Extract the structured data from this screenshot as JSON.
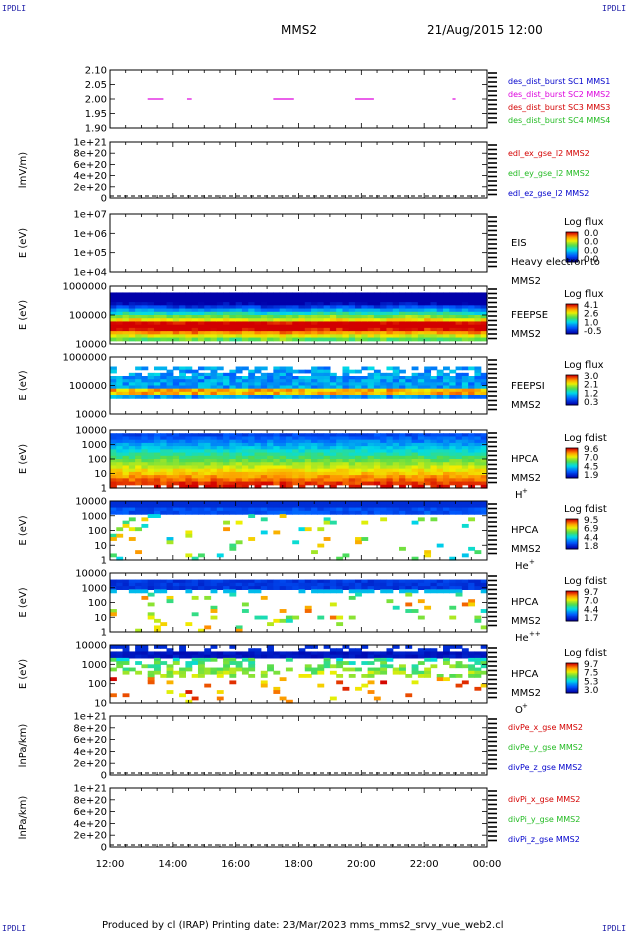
{
  "header": {
    "corner_left_top": "IPDLI",
    "corner_right_top": "IPDLI",
    "corner_left_bottom": "IPDLI",
    "corner_right_bottom": "IPDLI",
    "spacecraft": "MMS2",
    "date": "21/Aug/2015 12:00"
  },
  "footer": {
    "text": "Produced by cl (IRAP)   Printing date: 23/Mar/2023   mms_mms2_srvy_vue_web2.cl"
  },
  "colors": {
    "red": "#d40000",
    "green": "#22bb22",
    "blue": "#0000cc",
    "magenta": "#dd00dd"
  },
  "chart_data": [
    {
      "type": "line",
      "panel": "burst",
      "yticks": [
        "2.10",
        "2.05",
        "2.00",
        "1.95",
        "1.90"
      ],
      "ylim": [
        1.9,
        2.1
      ],
      "series": [
        {
          "name": "des_dist_burst SC1 MMS1",
          "color": "#0000cc"
        },
        {
          "name": "des_dist_burst SC2 MMS2",
          "color": "#dd00dd",
          "segments": [
            [
              13.2,
              13.7
            ],
            [
              14.45,
              14.6
            ],
            [
              17.2,
              17.85
            ],
            [
              19.8,
              20.4
            ],
            [
              22.9,
              23.0
            ]
          ],
          "value": 2.0
        },
        {
          "name": "des_dist_burst SC3 MMS3",
          "color": "#d40000"
        },
        {
          "name": "des_dist_burst SC4 MMS4",
          "color": "#22bb22"
        }
      ]
    },
    {
      "type": "line",
      "panel": "efield",
      "ylabel": "lmV/m)",
      "yticks": [
        "1e+21",
        "8e+20",
        "6e+20",
        "4e+20",
        "2e+20",
        "0"
      ],
      "series": [
        {
          "name": "edl_ex_gse_l2 MMS2",
          "color": "#d40000"
        },
        {
          "name": "edl_ey_gse_l2 MMS2",
          "color": "#22bb22"
        },
        {
          "name": "edl_ez_gse_l2 MMS2",
          "color": "#0000cc"
        }
      ]
    },
    {
      "type": "heatmap",
      "panel": "eis",
      "ylabel": "E (eV)",
      "yticks": [
        "1e+07",
        "1e+06",
        "1e+05",
        "1e+04"
      ],
      "labels": [
        "EIS",
        "Heavy electron to",
        "MMS2"
      ],
      "cbar_title": "Log flux",
      "cbar_ticks": [
        "0.0",
        "0.0",
        "0.0",
        "0.0"
      ]
    },
    {
      "type": "heatmap",
      "panel": "feepse",
      "ylabel": "E (eV)",
      "yticks": [
        "1000000",
        "100000",
        "10000"
      ],
      "labels": [
        "FEEPSE",
        "MMS2"
      ],
      "cbar_title": "Log flux",
      "cbar_ticks": [
        "4.1",
        "2.6",
        "1.0",
        "-0.5"
      ]
    },
    {
      "type": "heatmap",
      "panel": "feepsi",
      "ylabel": "E (eV)",
      "yticks": [
        "1000000",
        "100000",
        "10000"
      ],
      "labels": [
        "FEEPSI",
        "MMS2"
      ],
      "cbar_title": "Log flux",
      "cbar_ticks": [
        "3.0",
        "2.1",
        "1.2",
        "0.3"
      ]
    },
    {
      "type": "heatmap",
      "panel": "hpca_h",
      "ylabel": "E (eV)",
      "yticks": [
        "10000",
        "1000",
        "100",
        "10",
        "1"
      ],
      "labels": [
        "HPCA",
        "MMS2"
      ],
      "species": "H",
      "charge": "+",
      "cbar_title": "Log fdist",
      "cbar_ticks": [
        "9.6",
        "7.0",
        "4.5",
        "1.9"
      ]
    },
    {
      "type": "heatmap",
      "panel": "hpca_he",
      "ylabel": "E (eV)",
      "yticks": [
        "10000",
        "1000",
        "100",
        "10",
        "1"
      ],
      "labels": [
        "HPCA",
        "MMS2"
      ],
      "species": "He",
      "charge": "+",
      "cbar_title": "Log fdist",
      "cbar_ticks": [
        "9.5",
        "6.9",
        "4.4",
        "1.8"
      ]
    },
    {
      "type": "heatmap",
      "panel": "hpca_hepp",
      "ylabel": "E (eV)",
      "yticks": [
        "10000",
        "1000",
        "100",
        "10",
        "1"
      ],
      "labels": [
        "HPCA",
        "MMS2"
      ],
      "species": "He",
      "charge": "++",
      "cbar_title": "Log fdist",
      "cbar_ticks": [
        "9.7",
        "7.0",
        "4.4",
        "1.7"
      ]
    },
    {
      "type": "heatmap",
      "panel": "hpca_o",
      "ylabel": "E (eV)",
      "yticks": [
        "10000",
        "1000",
        "100",
        "10"
      ],
      "labels": [
        "HPCA",
        "MMS2"
      ],
      "species": "O",
      "charge": "+",
      "cbar_title": "Log fdist",
      "cbar_ticks": [
        "9.7",
        "7.5",
        "5.3",
        "3.0"
      ]
    },
    {
      "type": "line",
      "panel": "divpe",
      "ylabel": "lnPa/km)",
      "yticks": [
        "1e+21",
        "8e+20",
        "6e+20",
        "4e+20",
        "2e+20",
        "0"
      ],
      "series": [
        {
          "name": "divPe_x_gse MMS2",
          "color": "#d40000"
        },
        {
          "name": "divPe_y_gse MMS2",
          "color": "#22bb22"
        },
        {
          "name": "divPe_z_gse MMS2",
          "color": "#0000cc"
        }
      ]
    },
    {
      "type": "line",
      "panel": "divpi",
      "ylabel": "lnPa/km)",
      "yticks": [
        "1e+21",
        "8e+20",
        "6e+20",
        "4e+20",
        "2e+20",
        "0"
      ],
      "series": [
        {
          "name": "divPi_x_gse MMS2",
          "color": "#d40000"
        },
        {
          "name": "divPi_y_gse MMS2",
          "color": "#22bb22"
        },
        {
          "name": "divPi_z_gse MMS2",
          "color": "#0000cc"
        }
      ]
    }
  ],
  "xaxis": {
    "ticks": [
      "12:00",
      "14:00",
      "16:00",
      "18:00",
      "20:00",
      "22:00",
      "00:00"
    ],
    "range_hours": [
      12,
      24
    ]
  }
}
